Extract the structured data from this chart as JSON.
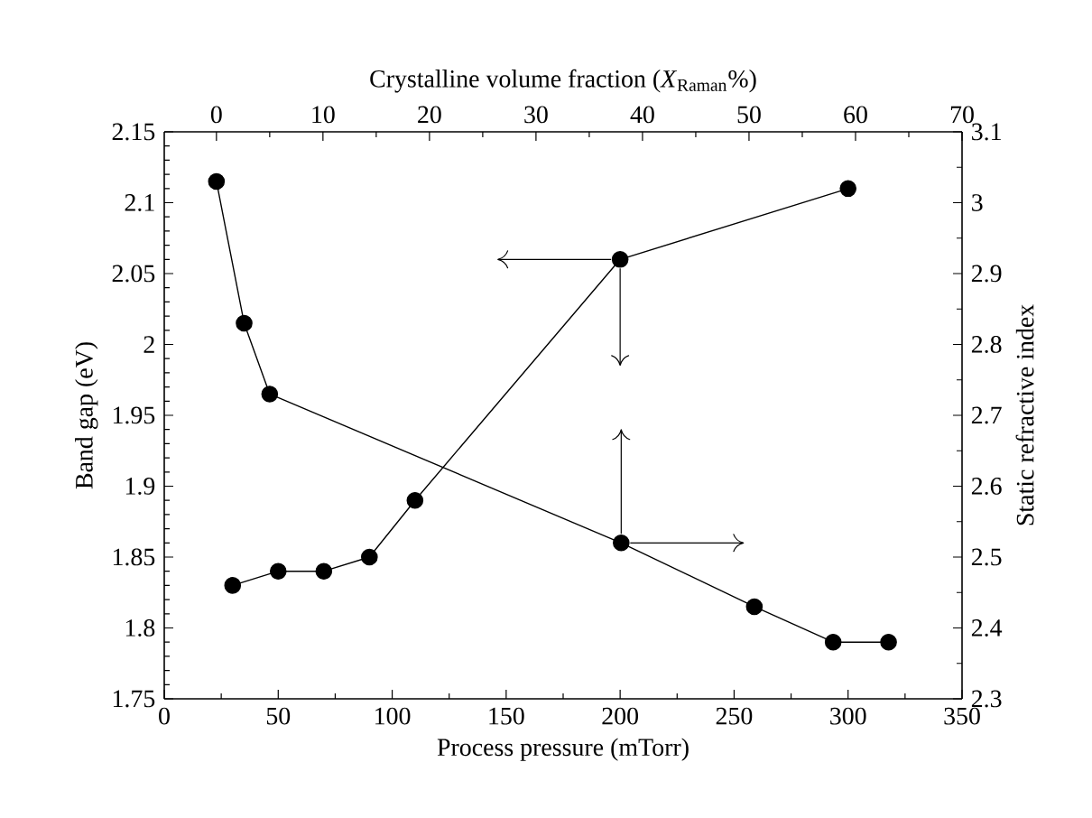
{
  "chart_data": [
    {
      "type": "line",
      "xlabel": "Process pressure (mTorr)",
      "ylabel": "Band gap (eV)",
      "xlim": [
        0,
        350
      ],
      "xticks": [
        0,
        50,
        100,
        150,
        200,
        250,
        300,
        350
      ],
      "ylim": [
        1.75,
        2.15
      ],
      "yticks": [
        1.75,
        1.8,
        1.85,
        1.9,
        1.95,
        2,
        2.05,
        2.1,
        2.15
      ],
      "marker": "circle",
      "line_style": "solid",
      "series": [
        {
          "color": "#000000",
          "x": [
            30,
            50,
            70,
            90,
            110,
            200,
            300
          ],
          "values": [
            1.83,
            1.84,
            1.84,
            1.85,
            1.89,
            2.06,
            2.11
          ]
        }
      ]
    },
    {
      "type": "line",
      "xlabel": "Crystalline volume fraction (*X*$_{Raman}$%)",
      "ylabel": "Static refractive index",
      "xlim": [
        -4.9,
        70
      ],
      "xticks": [
        0,
        10,
        20,
        30,
        40,
        50,
        60,
        70
      ],
      "ylim": [
        2.3,
        3.1
      ],
      "yticks": [
        2.3,
        2.4,
        2.5,
        2.6,
        2.7,
        2.8,
        2.9,
        3,
        3.1
      ],
      "marker": "circle",
      "line_style": "solid",
      "series": [
        {
          "color": "#000000",
          "x": [
            0,
            2.6,
            5,
            38,
            50.5,
            57.9,
            63.1
          ],
          "values": [
            3.03,
            2.83,
            2.73,
            2.52,
            2.43,
            2.38,
            2.38
          ]
        }
      ]
    }
  ]
}
